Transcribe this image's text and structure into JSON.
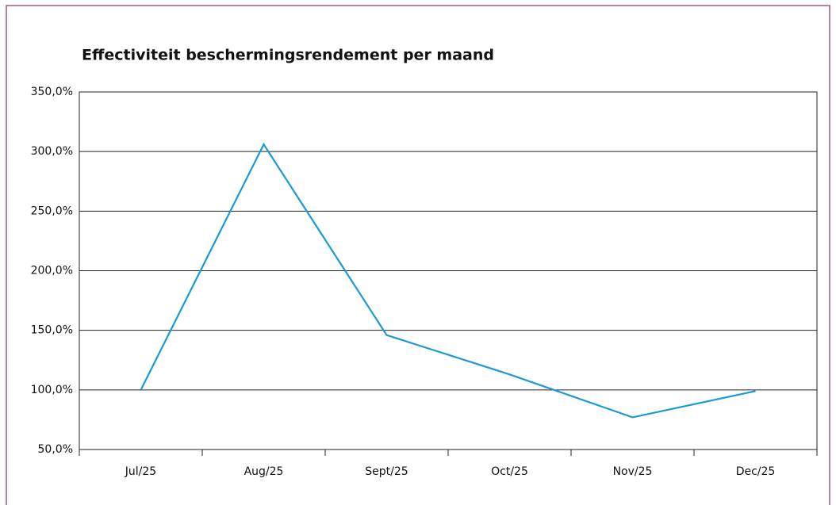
{
  "chart_data": {
    "type": "line",
    "title": "Effectiviteit beschermingsrendement per maand",
    "categories": [
      "Jul/25",
      "Aug/25",
      "Sept/25",
      "Oct/25",
      "Nov/25",
      "Dec/25"
    ],
    "series": [
      {
        "name": "Effectiviteit",
        "color": "#1a9ad6",
        "values": [
          100,
          306,
          146,
          113,
          77,
          99
        ]
      }
    ],
    "ylim": [
      50,
      350
    ],
    "yticks": [
      {
        "value": 50,
        "label": "50,0%"
      },
      {
        "value": 100,
        "label": "100,0%"
      },
      {
        "value": 150,
        "label": "150,0%"
      },
      {
        "value": 200,
        "label": "200,0%"
      },
      {
        "value": 250,
        "label": "250,0%"
      },
      {
        "value": 300,
        "label": "300,0%"
      },
      {
        "value": 350,
        "label": "350,0%"
      }
    ],
    "grid": true
  }
}
